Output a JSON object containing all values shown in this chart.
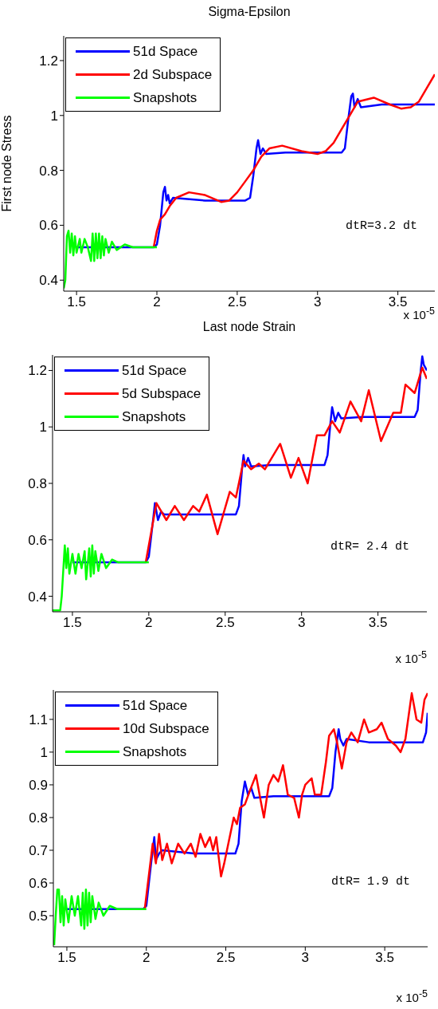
{
  "chart_data": [
    {
      "type": "line",
      "title": "Sigma-Epsilon",
      "xlabel": "Last node Strain",
      "ylabel": "First node Stress",
      "xlim": [
        1.42,
        3.73
      ],
      "ylim": [
        0.36,
        1.29
      ],
      "xticks": [
        1.5,
        2,
        2.5,
        3,
        3.5
      ],
      "yticks": [
        0.4,
        0.6,
        0.8,
        1,
        1.2
      ],
      "legend": "top left",
      "marker": "none",
      "line_style": "solid",
      "annotations": [
        "dtR=3.2 dt",
        "x 10$^{-5}$"
      ],
      "series": [
        {
          "name": "51d Space",
          "color": "#0000ff",
          "x": [
            1.5,
            1.7,
            1.98,
            2.0,
            2.02,
            2.04,
            2.05,
            2.06,
            2.07,
            2.08,
            2.1,
            2.3,
            2.55,
            2.58,
            2.6,
            2.62,
            2.63,
            2.645,
            2.66,
            2.68,
            2.8,
            3.0,
            3.15,
            3.17,
            3.19,
            3.21,
            3.22,
            3.23,
            3.25,
            3.27,
            3.4,
            3.6,
            3.73
          ],
          "values": [
            0.52,
            0.52,
            0.52,
            0.53,
            0.6,
            0.72,
            0.74,
            0.69,
            0.71,
            0.68,
            0.7,
            0.69,
            0.69,
            0.7,
            0.78,
            0.88,
            0.91,
            0.86,
            0.88,
            0.86,
            0.865,
            0.865,
            0.865,
            0.88,
            0.98,
            1.07,
            1.08,
            1.03,
            1.06,
            1.03,
            1.04,
            1.04,
            1.04
          ]
        },
        {
          "name": "2d Subspace",
          "color": "#ff0000",
          "x": [
            1.98,
            2.0,
            2.02,
            2.05,
            2.08,
            2.12,
            2.2,
            2.3,
            2.4,
            2.45,
            2.5,
            2.55,
            2.6,
            2.65,
            2.7,
            2.78,
            2.9,
            3.0,
            3.05,
            3.1,
            3.15,
            3.2,
            3.25,
            3.35,
            3.45,
            3.52,
            3.58,
            3.63,
            3.68,
            3.73
          ],
          "values": [
            0.52,
            0.58,
            0.62,
            0.64,
            0.67,
            0.7,
            0.72,
            0.71,
            0.685,
            0.69,
            0.72,
            0.76,
            0.8,
            0.85,
            0.88,
            0.89,
            0.87,
            0.86,
            0.87,
            0.9,
            0.95,
            1.0,
            1.05,
            1.065,
            1.04,
            1.025,
            1.03,
            1.05,
            1.1,
            1.15
          ]
        },
        {
          "name": "Snapshots",
          "color": "#00ff00",
          "x": [
            1.42,
            1.43,
            1.44,
            1.45,
            1.46,
            1.47,
            1.48,
            1.49,
            1.5,
            1.52,
            1.53,
            1.55,
            1.57,
            1.59,
            1.6,
            1.61,
            1.62,
            1.63,
            1.64,
            1.65,
            1.66,
            1.67,
            1.68,
            1.7,
            1.72,
            1.75,
            1.8,
            1.85,
            2.0
          ],
          "values": [
            0.37,
            0.4,
            0.56,
            0.58,
            0.5,
            0.57,
            0.49,
            0.56,
            0.5,
            0.55,
            0.5,
            0.55,
            0.52,
            0.47,
            0.57,
            0.47,
            0.57,
            0.48,
            0.57,
            0.48,
            0.56,
            0.49,
            0.55,
            0.5,
            0.54,
            0.51,
            0.53,
            0.52,
            0.52
          ]
        }
      ]
    },
    {
      "type": "line",
      "xlim": [
        1.37,
        3.82
      ],
      "ylim": [
        0.345,
        1.255
      ],
      "xticks": [
        1.5,
        2,
        2.5,
        3,
        3.5
      ],
      "yticks": [
        0.4,
        0.6,
        0.8,
        1,
        1.2
      ],
      "legend": "top left",
      "marker": "none",
      "line_style": "solid",
      "annotations": [
        "dtR= 2.4 dt",
        "x 10$^{-5}$"
      ],
      "series": [
        {
          "name": "51d Space",
          "color": "#0000ff",
          "x": [
            1.5,
            1.98,
            2.0,
            2.03,
            2.04,
            2.06,
            2.08,
            2.1,
            2.3,
            2.57,
            2.59,
            2.61,
            2.62,
            2.63,
            2.65,
            2.67,
            2.8,
            3.0,
            3.15,
            3.17,
            3.19,
            3.2,
            3.22,
            3.24,
            3.26,
            3.4,
            3.6,
            3.74,
            3.76,
            3.78,
            3.79,
            3.8,
            3.82
          ],
          "values": [
            0.52,
            0.52,
            0.54,
            0.68,
            0.73,
            0.67,
            0.7,
            0.69,
            0.69,
            0.69,
            0.72,
            0.85,
            0.9,
            0.86,
            0.89,
            0.86,
            0.865,
            0.865,
            0.865,
            0.9,
            1.02,
            1.07,
            1.02,
            1.05,
            1.03,
            1.035,
            1.035,
            1.035,
            1.06,
            1.2,
            1.25,
            1.22,
            1.2
          ]
        },
        {
          "name": "5d Subspace",
          "color": "#ff0000",
          "x": [
            1.98,
            2.05,
            2.115,
            2.17,
            2.23,
            2.29,
            2.33,
            2.38,
            2.45,
            2.53,
            2.57,
            2.62,
            2.67,
            2.72,
            2.76,
            2.86,
            2.93,
            2.98,
            3.04,
            3.1,
            3.15,
            3.2,
            3.25,
            3.32,
            3.39,
            3.44,
            3.52,
            3.6,
            3.65,
            3.68,
            3.74,
            3.79,
            3.82
          ],
          "values": [
            0.52,
            0.73,
            0.67,
            0.72,
            0.67,
            0.72,
            0.7,
            0.76,
            0.62,
            0.77,
            0.75,
            0.88,
            0.85,
            0.87,
            0.85,
            0.94,
            0.82,
            0.89,
            0.8,
            0.97,
            0.97,
            1.02,
            0.98,
            1.09,
            1.02,
            1.13,
            0.95,
            1.05,
            1.05,
            1.15,
            1.12,
            1.21,
            1.17
          ]
        },
        {
          "name": "Snapshots",
          "color": "#00ff00",
          "x": [
            1.37,
            1.42,
            1.43,
            1.45,
            1.46,
            1.47,
            1.48,
            1.5,
            1.52,
            1.54,
            1.56,
            1.58,
            1.59,
            1.61,
            1.62,
            1.63,
            1.64,
            1.65,
            1.67,
            1.69,
            1.72,
            1.76,
            1.8,
            2.0
          ],
          "values": [
            0.35,
            0.35,
            0.4,
            0.58,
            0.5,
            0.57,
            0.48,
            0.55,
            0.48,
            0.55,
            0.5,
            0.56,
            0.46,
            0.57,
            0.47,
            0.58,
            0.48,
            0.56,
            0.49,
            0.55,
            0.5,
            0.53,
            0.52,
            0.52
          ]
        }
      ]
    },
    {
      "type": "line",
      "xlim": [
        1.415,
        3.77
      ],
      "ylim": [
        0.405,
        1.19
      ],
      "xticks": [
        1.5,
        2,
        2.5,
        3,
        3.5
      ],
      "yticks": [
        0.5,
        0.6,
        0.7,
        0.8,
        0.9,
        1,
        1.1
      ],
      "legend": "top left",
      "marker": "none",
      "line_style": "solid",
      "annotations": [
        "dtR= 1.9 dt",
        "x 10$^{-5}$"
      ],
      "series": [
        {
          "name": "51d Space",
          "color": "#0000ff",
          "x": [
            1.5,
            1.98,
            2.0,
            2.03,
            2.05,
            2.06,
            2.08,
            2.1,
            2.3,
            2.56,
            2.58,
            2.6,
            2.62,
            2.64,
            2.66,
            2.68,
            2.8,
            3.0,
            3.15,
            3.17,
            3.19,
            3.21,
            3.22,
            3.24,
            3.26,
            3.4,
            3.6,
            3.74,
            3.76,
            3.77
          ],
          "values": [
            0.52,
            0.52,
            0.53,
            0.66,
            0.74,
            0.67,
            0.69,
            0.7,
            0.69,
            0.69,
            0.72,
            0.85,
            0.91,
            0.87,
            0.89,
            0.86,
            0.865,
            0.865,
            0.865,
            0.89,
            1.0,
            1.07,
            1.04,
            1.02,
            1.04,
            1.03,
            1.03,
            1.03,
            1.06,
            1.12
          ]
        },
        {
          "name": "10d Subspace",
          "color": "#ff0000",
          "x": [
            1.99,
            2.02,
            2.04,
            2.06,
            2.08,
            2.1,
            2.13,
            2.16,
            2.2,
            2.24,
            2.28,
            2.31,
            2.34,
            2.37,
            2.4,
            2.42,
            2.44,
            2.47,
            2.49,
            2.52,
            2.55,
            2.57,
            2.59,
            2.62,
            2.65,
            2.69,
            2.72,
            2.74,
            2.77,
            2.8,
            2.83,
            2.86,
            2.89,
            2.93,
            2.96,
            2.98,
            3.0,
            3.04,
            3.06,
            3.1,
            3.13,
            3.15,
            3.18,
            3.2,
            3.23,
            3.26,
            3.29,
            3.33,
            3.37,
            3.4,
            3.45,
            3.48,
            3.52,
            3.57,
            3.6,
            3.63,
            3.67,
            3.7,
            3.73,
            3.75,
            3.77
          ],
          "values": [
            0.52,
            0.64,
            0.72,
            0.66,
            0.75,
            0.67,
            0.72,
            0.66,
            0.72,
            0.69,
            0.72,
            0.68,
            0.75,
            0.71,
            0.74,
            0.7,
            0.74,
            0.62,
            0.66,
            0.73,
            0.8,
            0.78,
            0.83,
            0.84,
            0.88,
            0.93,
            0.85,
            0.8,
            0.9,
            0.93,
            0.91,
            0.96,
            0.87,
            0.86,
            0.8,
            0.87,
            0.9,
            0.92,
            0.87,
            0.87,
            0.97,
            1.05,
            1.07,
            1.03,
            0.95,
            1.03,
            1.06,
            1.03,
            1.1,
            1.06,
            1.07,
            1.09,
            1.04,
            1.02,
            1.0,
            1.04,
            1.18,
            1.1,
            1.09,
            1.16,
            1.18
          ]
        },
        {
          "name": "Snapshots",
          "color": "#00ff00",
          "x": [
            1.42,
            1.43,
            1.44,
            1.45,
            1.46,
            1.47,
            1.48,
            1.49,
            1.51,
            1.53,
            1.55,
            1.57,
            1.59,
            1.6,
            1.61,
            1.62,
            1.63,
            1.64,
            1.65,
            1.66,
            1.68,
            1.7,
            1.73,
            1.77,
            1.82,
            2.0
          ],
          "values": [
            0.41,
            0.5,
            0.58,
            0.58,
            0.48,
            0.56,
            0.47,
            0.55,
            0.48,
            0.56,
            0.5,
            0.56,
            0.47,
            0.57,
            0.46,
            0.58,
            0.47,
            0.57,
            0.48,
            0.56,
            0.49,
            0.54,
            0.5,
            0.53,
            0.52,
            0.52
          ]
        }
      ]
    }
  ]
}
